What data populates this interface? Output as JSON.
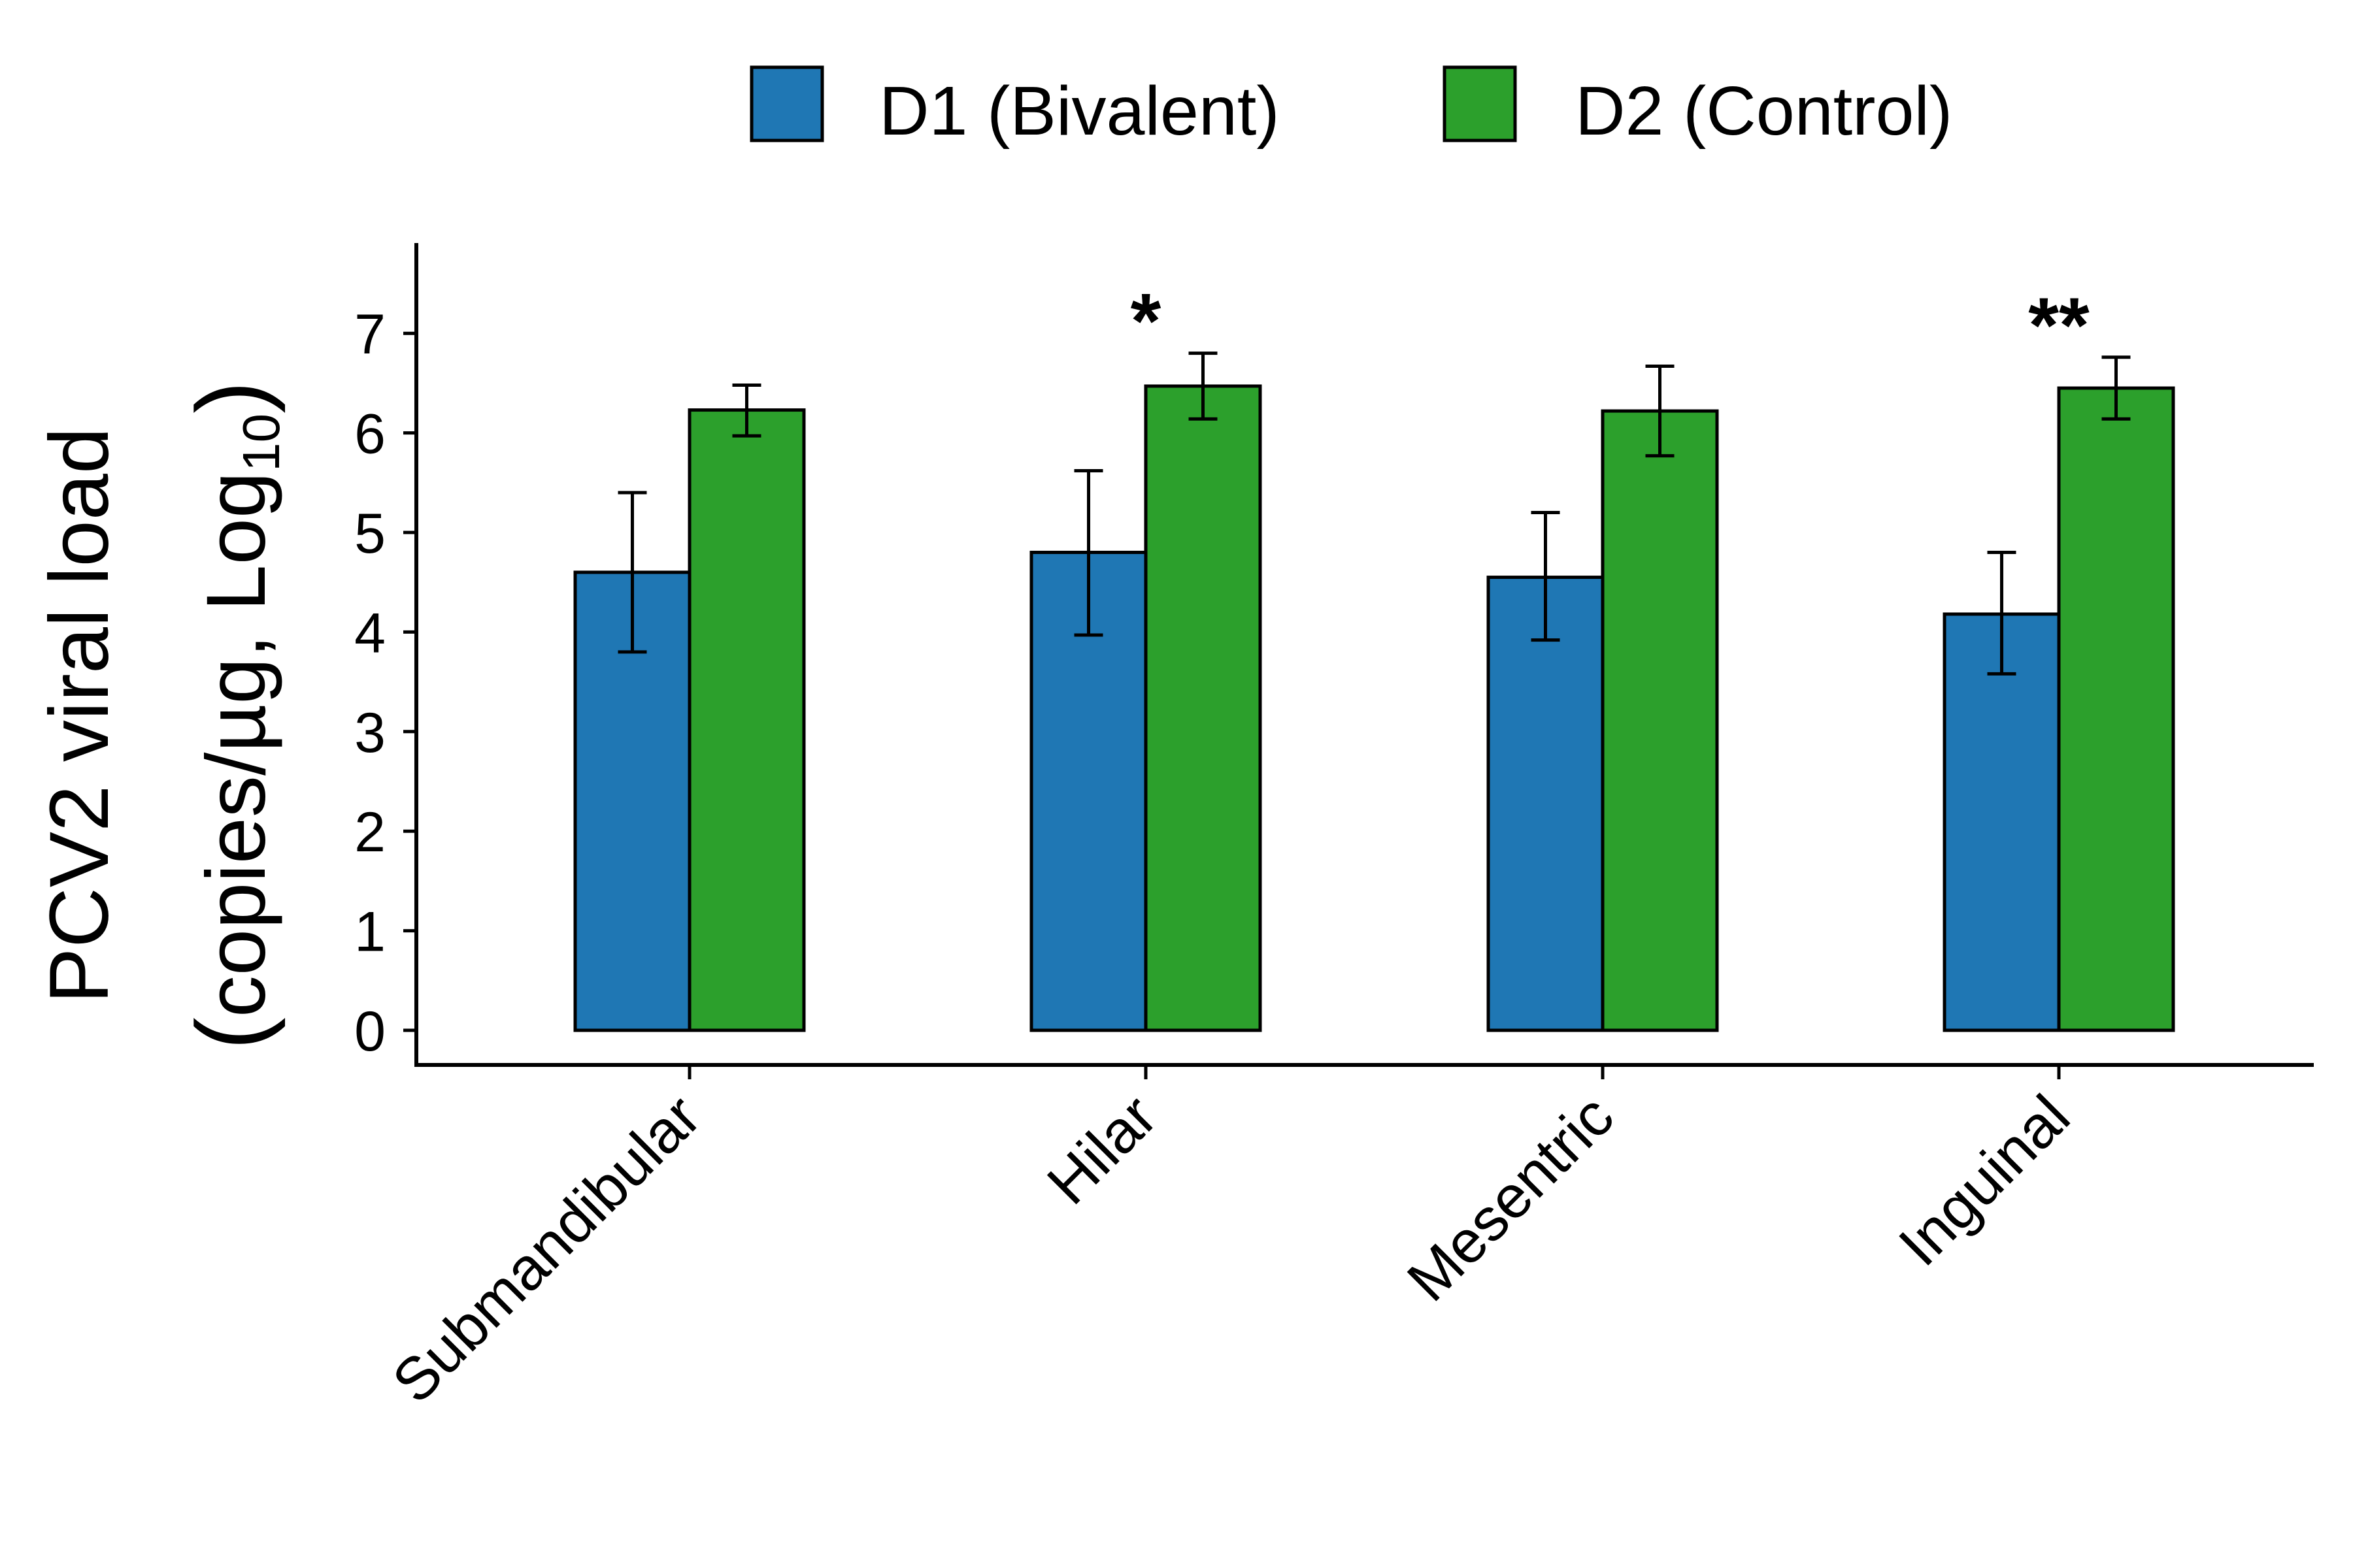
{
  "chart_data": {
    "type": "bar",
    "categories": [
      "Submandibular",
      "Hilar",
      "Mesentric",
      "Inguinal"
    ],
    "series": [
      {
        "name": "D1 (Bivalent)",
        "color": "#1F77B4",
        "values": [
          4.6,
          4.8,
          4.55,
          4.18
        ],
        "error_low": [
          3.8,
          3.97,
          3.92,
          3.58
        ],
        "error_high": [
          5.4,
          5.62,
          5.2,
          4.8
        ]
      },
      {
        "name": "D2 (Control)",
        "color": "#2CA02C",
        "values": [
          6.23,
          6.47,
          6.22,
          6.45
        ],
        "error_low": [
          5.97,
          6.14,
          5.77,
          6.14
        ],
        "error_high": [
          6.48,
          6.8,
          6.67,
          6.76
        ]
      }
    ],
    "significance": [
      "",
      "*",
      "",
      "**"
    ],
    "ylabel_line1": "PCV2 viral load",
    "ylabel_line2_prefix": "copies/µg, Log",
    "ylabel_subscript": "10",
    "ylim": [
      0,
      7.8
    ],
    "yticks": [
      "0",
      "1",
      "2",
      "3",
      "4",
      "5",
      "6",
      "7"
    ],
    "grid": false,
    "legend_position": "top"
  }
}
